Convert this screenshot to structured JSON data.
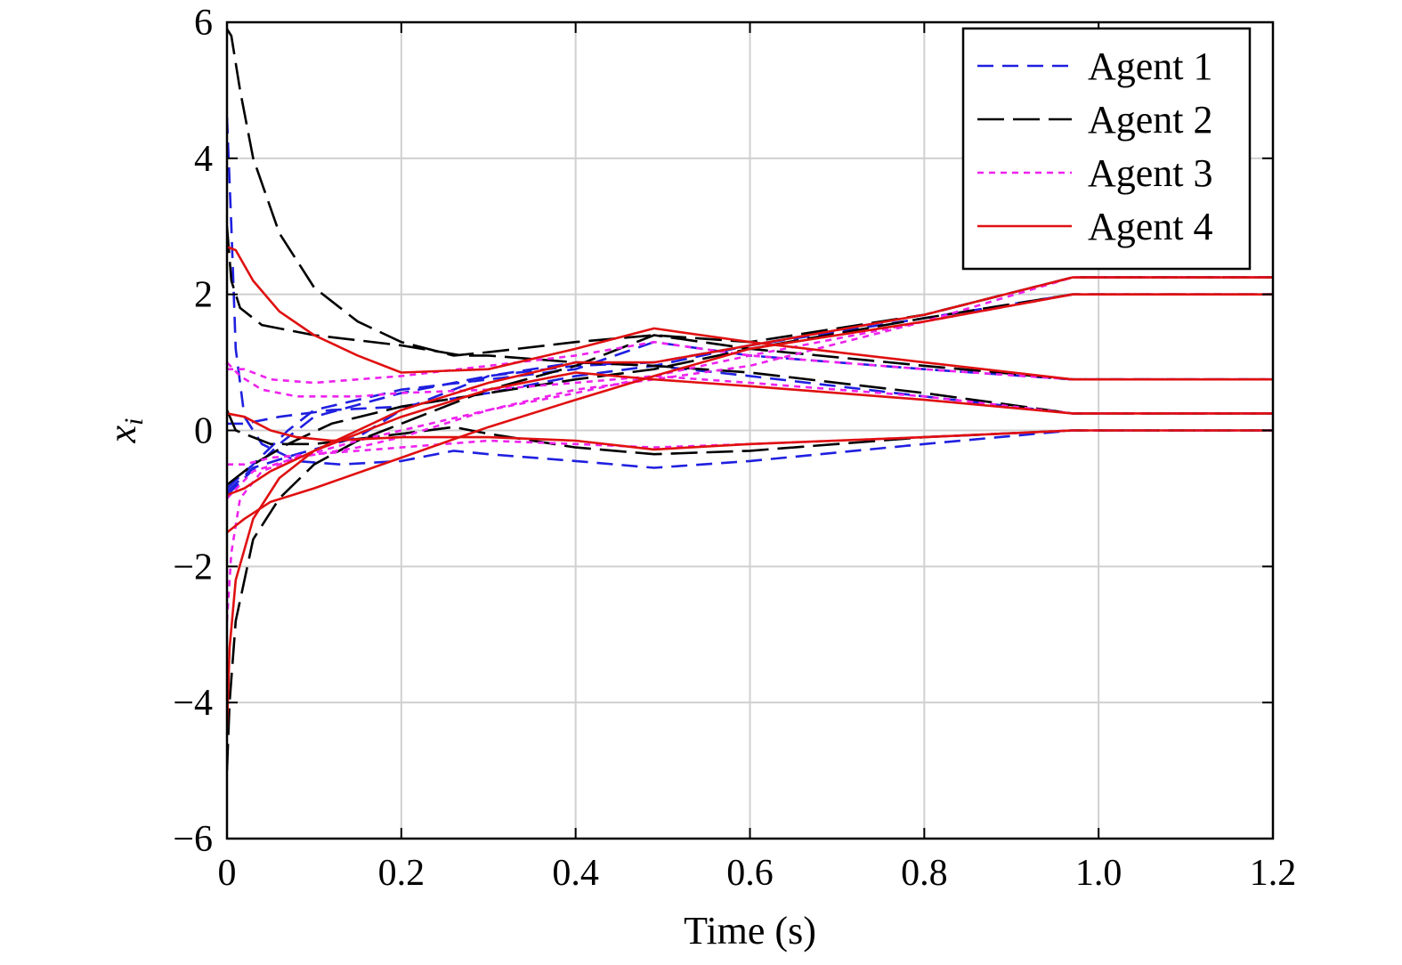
{
  "chart_data": {
    "type": "line",
    "title": "",
    "xlabel": "Time (s)",
    "ylabel": "x",
    "ylabel_sub": "i",
    "xlim": [
      0,
      1.2
    ],
    "ylim": [
      -6,
      6
    ],
    "xticks": [
      0,
      0.2,
      0.4,
      0.6,
      0.8,
      1.0,
      1.2
    ],
    "xtick_labels": [
      "0",
      "0.2",
      "0.4",
      "0.6",
      "0.8",
      "1.0",
      "1.2"
    ],
    "yticks": [
      -6,
      -4,
      -2,
      0,
      2,
      4,
      6
    ],
    "ytick_labels": [
      "−6",
      "−4",
      "−2",
      "0",
      "2",
      "4",
      "6"
    ],
    "grid": true,
    "legend_position": "top-right",
    "series": [
      {
        "name": "Agent 1",
        "color": "#1f1fe0",
        "dash": "dashed",
        "curves": [
          [
            [
              0,
              4.6
            ],
            [
              0.005,
              3.0
            ],
            [
              0.01,
              1.2
            ],
            [
              0.02,
              0.2
            ],
            [
              0.04,
              -0.2
            ],
            [
              0.08,
              -0.45
            ],
            [
              0.13,
              -0.5
            ],
            [
              0.2,
              -0.45
            ],
            [
              0.26,
              -0.3
            ],
            [
              0.3,
              -0.35
            ],
            [
              0.4,
              -0.45
            ],
            [
              0.49,
              -0.55
            ],
            [
              0.6,
              -0.45
            ],
            [
              0.8,
              -0.2
            ],
            [
              0.97,
              0.0
            ],
            [
              1.2,
              0.0
            ]
          ],
          [
            [
              0,
              -0.95
            ],
            [
              0.02,
              -0.7
            ],
            [
              0.06,
              -0.2
            ],
            [
              0.1,
              0.2
            ],
            [
              0.2,
              0.55
            ],
            [
              0.3,
              0.8
            ],
            [
              0.4,
              0.95
            ],
            [
              0.49,
              1.0
            ],
            [
              0.6,
              1.25
            ],
            [
              0.8,
              1.7
            ],
            [
              0.97,
              2.25
            ],
            [
              1.2,
              2.25
            ]
          ],
          [
            [
              0,
              -0.85
            ],
            [
              0.03,
              -0.5
            ],
            [
              0.07,
              0.0
            ],
            [
              0.1,
              0.3
            ],
            [
              0.2,
              0.6
            ],
            [
              0.3,
              0.75
            ],
            [
              0.4,
              0.9
            ],
            [
              0.49,
              1.3
            ],
            [
              0.6,
              1.1
            ],
            [
              0.8,
              0.9
            ],
            [
              0.97,
              0.75
            ],
            [
              1.2,
              0.75
            ]
          ],
          [
            [
              0,
              0.1
            ],
            [
              0.02,
              0.1
            ],
            [
              0.06,
              0.2
            ],
            [
              0.12,
              0.3
            ],
            [
              0.2,
              0.35
            ],
            [
              0.3,
              0.55
            ],
            [
              0.4,
              0.8
            ],
            [
              0.49,
              0.95
            ],
            [
              0.6,
              0.8
            ],
            [
              0.8,
              0.5
            ],
            [
              0.97,
              0.25
            ],
            [
              1.2,
              0.25
            ]
          ],
          [
            [
              0,
              -0.9
            ],
            [
              0.03,
              -0.55
            ],
            [
              0.08,
              -0.35
            ],
            [
              0.15,
              -0.1
            ],
            [
              0.2,
              0.3
            ],
            [
              0.3,
              0.8
            ],
            [
              0.4,
              1.0
            ],
            [
              0.49,
              0.95
            ],
            [
              0.6,
              1.25
            ],
            [
              0.8,
              1.65
            ],
            [
              0.97,
              2.0
            ],
            [
              1.2,
              2.0
            ]
          ]
        ]
      },
      {
        "name": "Agent 2",
        "color": "#000000",
        "dash": "longdash",
        "curves": [
          [
            [
              0,
              -5.0
            ],
            [
              0.003,
              -4.0
            ],
            [
              0.01,
              -2.8
            ],
            [
              0.03,
              -1.6
            ],
            [
              0.06,
              -1.0
            ],
            [
              0.1,
              -0.5
            ],
            [
              0.15,
              -0.15
            ],
            [
              0.2,
              0.1
            ],
            [
              0.26,
              0.4
            ],
            [
              0.3,
              0.6
            ],
            [
              0.4,
              0.95
            ],
            [
              0.49,
              1.4
            ],
            [
              0.6,
              1.2
            ],
            [
              0.8,
              0.95
            ],
            [
              0.97,
              0.75
            ],
            [
              1.2,
              0.75
            ]
          ],
          [
            [
              0,
              5.9
            ],
            [
              0.005,
              5.8
            ],
            [
              0.015,
              5.0
            ],
            [
              0.03,
              4.0
            ],
            [
              0.06,
              2.9
            ],
            [
              0.1,
              2.1
            ],
            [
              0.15,
              1.6
            ],
            [
              0.2,
              1.3
            ],
            [
              0.26,
              1.1
            ],
            [
              0.3,
              1.15
            ],
            [
              0.4,
              1.3
            ],
            [
              0.49,
              1.4
            ],
            [
              0.6,
              1.3
            ],
            [
              0.8,
              1.7
            ],
            [
              0.97,
              2.25
            ],
            [
              1.2,
              2.25
            ]
          ],
          [
            [
              0,
              3.0
            ],
            [
              0.005,
              2.2
            ],
            [
              0.015,
              1.8
            ],
            [
              0.04,
              1.55
            ],
            [
              0.1,
              1.4
            ],
            [
              0.2,
              1.25
            ],
            [
              0.27,
              1.1
            ],
            [
              0.3,
              1.1
            ],
            [
              0.4,
              1.0
            ],
            [
              0.49,
              0.95
            ],
            [
              0.6,
              0.85
            ],
            [
              0.8,
              0.55
            ],
            [
              0.97,
              0.25
            ],
            [
              1.2,
              0.25
            ]
          ],
          [
            [
              0,
              0.3
            ],
            [
              0.01,
              0.0
            ],
            [
              0.05,
              -0.2
            ],
            [
              0.1,
              -0.2
            ],
            [
              0.2,
              -0.05
            ],
            [
              0.26,
              0.05
            ],
            [
              0.3,
              -0.05
            ],
            [
              0.4,
              -0.25
            ],
            [
              0.49,
              -0.35
            ],
            [
              0.6,
              -0.3
            ],
            [
              0.8,
              -0.1
            ],
            [
              0.97,
              0.0
            ],
            [
              1.2,
              0.0
            ]
          ],
          [
            [
              0,
              -0.8
            ],
            [
              0.03,
              -0.5
            ],
            [
              0.07,
              -0.2
            ],
            [
              0.12,
              0.1
            ],
            [
              0.2,
              0.35
            ],
            [
              0.3,
              0.55
            ],
            [
              0.4,
              0.75
            ],
            [
              0.49,
              0.9
            ],
            [
              0.6,
              1.2
            ],
            [
              0.8,
              1.65
            ],
            [
              0.97,
              2.0
            ],
            [
              1.2,
              2.0
            ]
          ]
        ]
      },
      {
        "name": "Agent 3",
        "color": "#ee22ee",
        "dash": "dotted",
        "curves": [
          [
            [
              0,
              -2.8
            ],
            [
              0.005,
              -1.8
            ],
            [
              0.015,
              -1.0
            ],
            [
              0.04,
              -0.6
            ],
            [
              0.08,
              -0.4
            ],
            [
              0.15,
              -0.25
            ],
            [
              0.2,
              -0.1
            ],
            [
              0.3,
              0.3
            ],
            [
              0.4,
              0.6
            ],
            [
              0.49,
              0.75
            ],
            [
              0.6,
              0.95
            ],
            [
              0.8,
              1.6
            ],
            [
              0.97,
              2.25
            ],
            [
              1.2,
              2.25
            ]
          ],
          [
            [
              0,
              0.9
            ],
            [
              0.02,
              0.9
            ],
            [
              0.05,
              0.75
            ],
            [
              0.1,
              0.7
            ],
            [
              0.2,
              0.8
            ],
            [
              0.3,
              0.95
            ],
            [
              0.4,
              1.1
            ],
            [
              0.49,
              1.3
            ],
            [
              0.6,
              1.1
            ],
            [
              0.8,
              0.9
            ],
            [
              0.97,
              0.75
            ],
            [
              1.2,
              0.75
            ]
          ],
          [
            [
              0,
              1.0
            ],
            [
              0.015,
              0.8
            ],
            [
              0.04,
              0.6
            ],
            [
              0.08,
              0.5
            ],
            [
              0.15,
              0.5
            ],
            [
              0.2,
              0.55
            ],
            [
              0.3,
              0.6
            ],
            [
              0.4,
              0.7
            ],
            [
              0.49,
              0.8
            ],
            [
              0.6,
              0.7
            ],
            [
              0.8,
              0.5
            ],
            [
              0.97,
              0.25
            ],
            [
              1.2,
              0.25
            ]
          ],
          [
            [
              0,
              -0.5
            ],
            [
              0.02,
              -0.5
            ],
            [
              0.05,
              -0.4
            ],
            [
              0.1,
              -0.35
            ],
            [
              0.2,
              -0.25
            ],
            [
              0.3,
              -0.15
            ],
            [
              0.4,
              -0.2
            ],
            [
              0.49,
              -0.25
            ],
            [
              0.6,
              -0.2
            ],
            [
              0.8,
              -0.1
            ],
            [
              0.97,
              0.0
            ],
            [
              1.2,
              0.0
            ]
          ],
          [
            [
              0,
              -1.0
            ],
            [
              0.03,
              -0.6
            ],
            [
              0.08,
              -0.4
            ],
            [
              0.15,
              -0.15
            ],
            [
              0.2,
              0.0
            ],
            [
              0.3,
              0.3
            ],
            [
              0.4,
              0.55
            ],
            [
              0.49,
              0.8
            ],
            [
              0.6,
              1.1
            ],
            [
              0.8,
              1.6
            ],
            [
              0.97,
              2.0
            ],
            [
              1.2,
              2.0
            ]
          ]
        ]
      },
      {
        "name": "Agent 4",
        "color": "#e01010",
        "dash": "solid",
        "curves": [
          [
            [
              0,
              -4.4
            ],
            [
              0.003,
              -3.2
            ],
            [
              0.01,
              -2.2
            ],
            [
              0.03,
              -1.3
            ],
            [
              0.06,
              -0.7
            ],
            [
              0.1,
              -0.3
            ],
            [
              0.15,
              0.0
            ],
            [
              0.2,
              0.3
            ],
            [
              0.3,
              0.7
            ],
            [
              0.4,
              1.0
            ],
            [
              0.49,
              1.0
            ],
            [
              0.6,
              1.25
            ],
            [
              0.8,
              1.7
            ],
            [
              0.97,
              2.25
            ],
            [
              1.2,
              2.25
            ]
          ],
          [
            [
              0,
              2.7
            ],
            [
              0.01,
              2.65
            ],
            [
              0.03,
              2.2
            ],
            [
              0.06,
              1.75
            ],
            [
              0.1,
              1.4
            ],
            [
              0.15,
              1.1
            ],
            [
              0.2,
              0.85
            ],
            [
              0.3,
              0.9
            ],
            [
              0.4,
              1.2
            ],
            [
              0.49,
              1.5
            ],
            [
              0.6,
              1.3
            ],
            [
              0.8,
              1.0
            ],
            [
              0.97,
              0.75
            ],
            [
              1.2,
              0.75
            ]
          ],
          [
            [
              0,
              0.25
            ],
            [
              0.02,
              0.2
            ],
            [
              0.05,
              0.0
            ],
            [
              0.08,
              -0.1
            ],
            [
              0.12,
              -0.15
            ],
            [
              0.2,
              -0.1
            ],
            [
              0.3,
              -0.1
            ],
            [
              0.4,
              -0.15
            ],
            [
              0.49,
              -0.28
            ],
            [
              0.6,
              -0.2
            ],
            [
              0.8,
              -0.1
            ],
            [
              0.97,
              0.0
            ],
            [
              1.2,
              0.0
            ]
          ],
          [
            [
              0,
              -0.95
            ],
            [
              0.02,
              -0.85
            ],
            [
              0.05,
              -0.6
            ],
            [
              0.1,
              -0.3
            ],
            [
              0.15,
              -0.05
            ],
            [
              0.2,
              0.2
            ],
            [
              0.3,
              0.6
            ],
            [
              0.4,
              0.85
            ],
            [
              0.49,
              0.75
            ],
            [
              0.6,
              0.65
            ],
            [
              0.8,
              0.45
            ],
            [
              0.97,
              0.25
            ],
            [
              1.2,
              0.25
            ]
          ],
          [
            [
              0,
              -1.5
            ],
            [
              0.02,
              -1.3
            ],
            [
              0.05,
              -1.05
            ],
            [
              0.1,
              -0.85
            ],
            [
              0.2,
              -0.4
            ],
            [
              0.3,
              0.05
            ],
            [
              0.4,
              0.45
            ],
            [
              0.49,
              0.8
            ],
            [
              0.6,
              1.2
            ],
            [
              0.8,
              1.6
            ],
            [
              0.97,
              2.0
            ],
            [
              1.2,
              2.0
            ]
          ]
        ]
      }
    ]
  }
}
